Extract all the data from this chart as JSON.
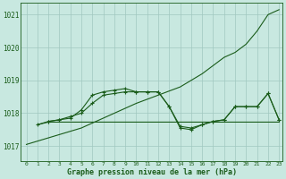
{
  "xlabel": "Graphe pression niveau de la mer (hPa)",
  "background_color": "#c8e8e0",
  "grid_color": "#a0c8c0",
  "line_color": "#1a5c1a",
  "xlim": [
    -0.5,
    23.3
  ],
  "ylim": [
    1016.55,
    1021.35
  ],
  "yticks": [
    1017,
    1018,
    1019,
    1020,
    1021
  ],
  "xticks": [
    0,
    1,
    2,
    3,
    4,
    5,
    6,
    7,
    8,
    9,
    10,
    11,
    12,
    13,
    14,
    15,
    16,
    17,
    18,
    19,
    20,
    21,
    22,
    23
  ],
  "line_diagonal_x": [
    0,
    5,
    10,
    14,
    16,
    18,
    19,
    20,
    21,
    22,
    23
  ],
  "line_diagonal_y": [
    1017.05,
    1017.55,
    1018.3,
    1018.8,
    1019.2,
    1019.7,
    1019.85,
    1020.1,
    1020.5,
    1021.0,
    1021.15
  ],
  "line_peak_x": [
    1,
    2,
    3,
    4,
    5,
    6,
    7,
    8,
    9,
    10,
    11,
    12,
    13,
    14,
    15,
    16,
    17,
    18,
    19,
    20,
    21,
    22,
    23
  ],
  "line_peak_y": [
    1017.65,
    1017.75,
    1017.8,
    1017.9,
    1018.0,
    1018.3,
    1018.55,
    1018.6,
    1018.65,
    1018.65,
    1018.65,
    1018.65,
    1018.2,
    1017.6,
    1017.55,
    1017.65,
    1017.75,
    1017.8,
    1018.2,
    1018.2,
    1018.2,
    1018.6,
    1017.8
  ],
  "line_flat_x": [
    1,
    2,
    3,
    4,
    5,
    6,
    7,
    8,
    9,
    10,
    11,
    12,
    13,
    14,
    15,
    16,
    17,
    18,
    19,
    20,
    21,
    22,
    23
  ],
  "line_flat_y": [
    1017.65,
    1017.73,
    1017.73,
    1017.73,
    1017.73,
    1017.73,
    1017.73,
    1017.73,
    1017.73,
    1017.73,
    1017.73,
    1017.73,
    1017.73,
    1017.73,
    1017.73,
    1017.73,
    1017.73,
    1017.73,
    1017.73,
    1017.73,
    1017.73,
    1017.73,
    1017.73
  ],
  "line_dip_x": [
    2,
    3,
    4,
    5,
    6,
    7,
    8,
    9,
    10,
    11,
    12,
    13,
    14,
    15,
    16,
    17,
    18,
    19,
    20,
    21,
    22,
    23
  ],
  "line_dip_y": [
    1017.75,
    1017.8,
    1017.85,
    1018.1,
    1018.55,
    1018.65,
    1018.7,
    1018.75,
    1018.65,
    1018.65,
    1018.65,
    1018.2,
    1017.55,
    1017.5,
    1017.65,
    1017.75,
    1017.8,
    1018.2,
    1018.2,
    1018.2,
    1018.6,
    1017.8
  ]
}
